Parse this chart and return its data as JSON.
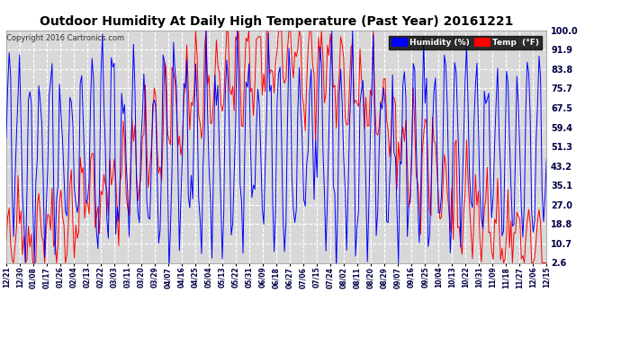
{
  "title": "Outdoor Humidity At Daily High Temperature (Past Year) 20161221",
  "copyright": "Copyright 2016 Cartronics.com",
  "legend_humidity_label": "Humidity (%)",
  "legend_temp_label": "Temp  (°F)",
  "humidity_color": "#0000ff",
  "temp_color": "#ff0000",
  "background_color": "#ffffff",
  "plot_bg_color": "#d8d8d8",
  "grid_color": "#ffffff",
  "title_color": "#000000",
  "ytick_labels": [
    "100.0",
    "91.9",
    "83.8",
    "75.7",
    "67.5",
    "59.4",
    "51.3",
    "43.2",
    "35.1",
    "27.0",
    "18.8",
    "10.7",
    "2.6"
  ],
  "ytick_values": [
    100.0,
    91.9,
    83.8,
    75.7,
    67.5,
    59.4,
    51.3,
    43.2,
    35.1,
    27.0,
    18.8,
    10.7,
    2.6
  ],
  "ylim": [
    2.6,
    100.0
  ],
  "xtick_labels": [
    "12/21",
    "12/30",
    "01/08",
    "01/17",
    "01/26",
    "02/04",
    "02/13",
    "02/22",
    "03/03",
    "03/11",
    "03/20",
    "03/29",
    "04/07",
    "04/16",
    "04/25",
    "05/04",
    "05/13",
    "05/22",
    "05/31",
    "06/09",
    "06/18",
    "06/27",
    "07/06",
    "07/15",
    "07/24",
    "08/02",
    "08/11",
    "08/20",
    "08/29",
    "09/07",
    "09/16",
    "09/25",
    "10/04",
    "10/13",
    "10/22",
    "10/31",
    "11/09",
    "11/18",
    "11/27",
    "12/06",
    "12/15"
  ],
  "n_points": 366
}
